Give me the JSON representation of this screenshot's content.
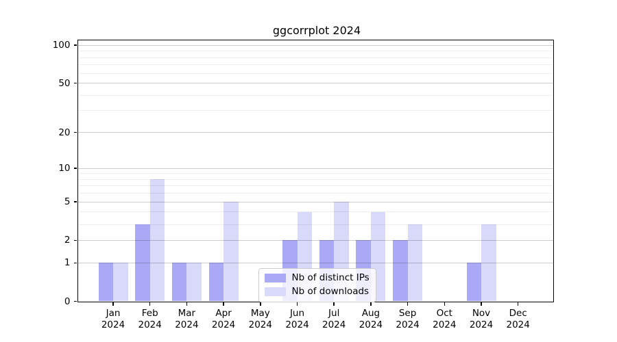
{
  "chart_data": {
    "type": "bar",
    "title": "ggcorrplot 2024",
    "categories": [
      "Jan",
      "Feb",
      "Mar",
      "Apr",
      "May",
      "Jun",
      "Jul",
      "Aug",
      "Sep",
      "Oct",
      "Nov",
      "Dec"
    ],
    "year_label": "2024",
    "series": [
      {
        "name": "Nb of distinct IPs",
        "color": "#a9a9f5",
        "values": [
          1,
          3,
          1,
          1,
          0,
          2,
          2,
          2,
          2,
          0,
          1,
          0
        ]
      },
      {
        "name": "Nb of downloads",
        "color": "#d9d9f9",
        "values": [
          1,
          8,
          1,
          5,
          0,
          4,
          5,
          4,
          3,
          0,
          3,
          0
        ]
      }
    ],
    "xlabel": "",
    "ylabel": "",
    "yscale": "log1p",
    "ylim": [
      0,
      110
    ],
    "yticks": [
      0,
      1,
      2,
      5,
      10,
      20,
      50,
      100
    ],
    "yticks_minor": [
      3,
      4,
      6,
      7,
      8,
      9,
      30,
      40,
      60,
      70,
      80,
      90
    ],
    "grid": "on",
    "grid_over_bars": true,
    "legend_position": "lower center"
  },
  "colors": {
    "background": "#ffffff",
    "spine": "#000000",
    "grid_major": "rgba(0,0,0,0.20)",
    "grid_minor": "rgba(0,0,0,0.07)",
    "tick": "#000000",
    "text": "#000000",
    "legend_border": "#cccccc",
    "legend_background": "rgba(255,255,255,0.8)"
  }
}
